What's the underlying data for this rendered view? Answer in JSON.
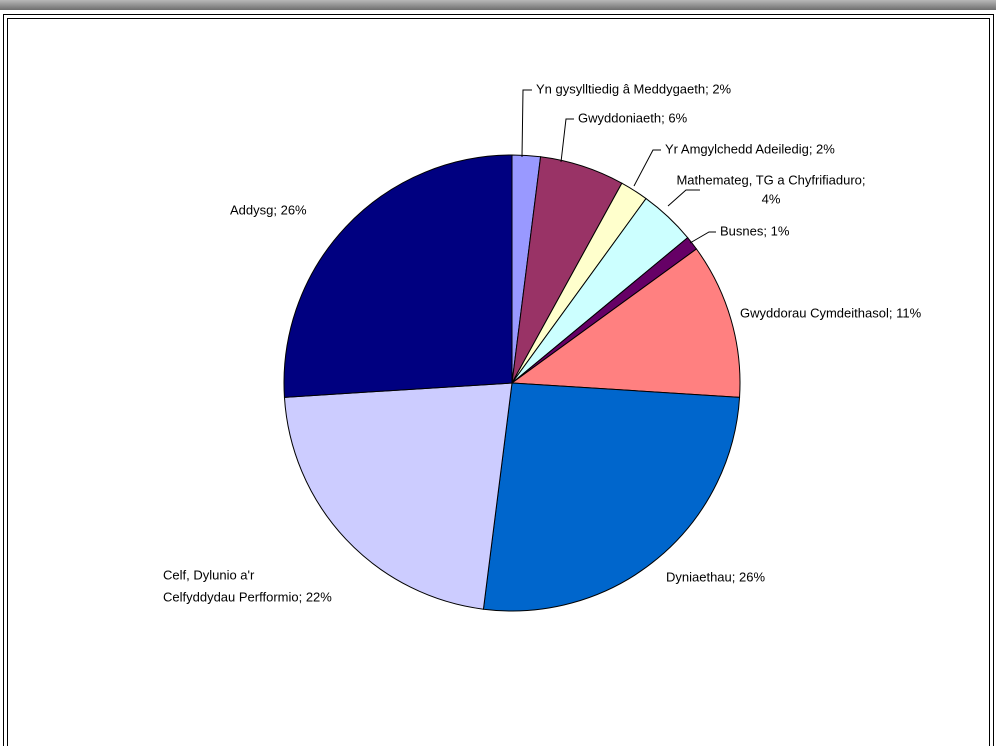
{
  "chart_data": {
    "type": "pie",
    "labels": [
      [
        "Yn gysylltiedig â Meddygaeth; 2%"
      ],
      [
        "Gwyddoniaeth; 6%"
      ],
      [
        "Yr Amgylchedd Adeiledig; 2%"
      ],
      [
        "Mathemateg, TG a Chyfrifiaduro;",
        "4%"
      ],
      [
        "Busnes; 1%"
      ],
      [
        "Gwyddorau Cymdeithasol; 11%"
      ],
      [
        "Dyniaethau; 26%"
      ],
      [
        "Celf, Dylunio a'r",
        "Celfyddydau Perfformio; 22%"
      ],
      [
        "Addysg; 26%"
      ]
    ],
    "values": [
      2,
      6,
      2,
      4,
      1,
      11,
      26,
      22,
      26
    ],
    "colors": [
      "#9999ff",
      "#993366",
      "#ffffcc",
      "#ccffff",
      "#660066",
      "#ff8080",
      "#0066cc",
      "#ccccff",
      "#000080"
    ]
  }
}
